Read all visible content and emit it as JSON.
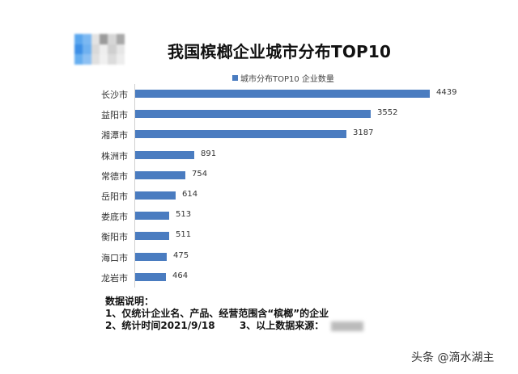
{
  "header": {
    "title": "我国槟榔企业城市分布TOP10",
    "logo_colors": [
      "#5aa6ee",
      "#7bb8f2",
      "#e3e3e3",
      "#9a9a9a",
      "#d6d6d6",
      "#a8a8a8",
      "#3d8fe6",
      "#6fb1f0",
      "#d9d9d9",
      "#eeeeee",
      "#cfcfcf",
      "#e6e6e6",
      "#66aef0",
      "#8cc0f3",
      "#e0e0e0",
      "#f0f0f0",
      "#dcdcdc",
      "#ededed"
    ]
  },
  "legend": {
    "label": "城市分布TOP10 企业数量",
    "color": "#4a7cc0"
  },
  "chart_data": {
    "type": "bar",
    "orientation": "horizontal",
    "title": "我国槟榔企业城市分布TOP10",
    "categories": [
      "长沙市",
      "益阳市",
      "湘潭市",
      "株洲市",
      "常德市",
      "岳阳市",
      "娄底市",
      "衡阳市",
      "海口市",
      "龙岩市"
    ],
    "series": [
      {
        "name": "城市分布TOP10 企业数量",
        "values": [
          4439,
          3552,
          3187,
          891,
          754,
          614,
          513,
          511,
          475,
          464
        ],
        "color": "#4a7cc0"
      }
    ],
    "xlabel": "",
    "ylabel": "",
    "grid": false,
    "legend_position": "top",
    "data_labels": true
  },
  "notes": {
    "heading": "数据说明：",
    "line1": "1、仅统计企业名、产品、经营范围含“槟榔”的企业",
    "line2": "2、统计时间2021/9/18",
    "line3": "3、以上数据来源："
  },
  "watermark": "头条 @滴水湖主"
}
